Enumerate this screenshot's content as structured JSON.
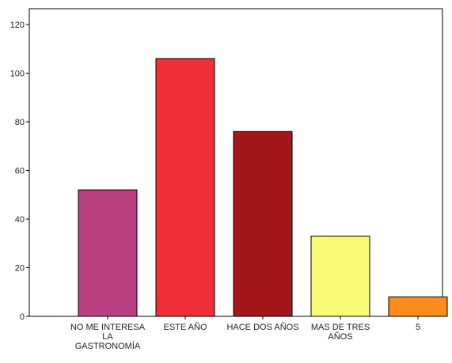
{
  "chart_data": {
    "type": "bar",
    "title": "",
    "xlabel": "",
    "ylabel": "",
    "ylim": [
      0,
      120
    ],
    "yticks": [
      0,
      20,
      40,
      60,
      80,
      100,
      120
    ],
    "yticks_labels": [
      "0",
      "20",
      "40",
      "60",
      "80",
      "100",
      "120"
    ],
    "categories": [
      [
        "NO ME INTERESA",
        "LA",
        "GASTRONOMÍA"
      ],
      [
        "ESTE AÑO"
      ],
      [
        "HACE DOS AÑOS"
      ],
      [
        "MAS DE TRES",
        "AÑOS"
      ],
      [
        "5"
      ]
    ],
    "values": [
      52,
      106,
      76,
      33,
      8
    ],
    "colors": [
      "#bb4081",
      "#f03039",
      "#a3161a",
      "#fafa78",
      "#fa8c1e"
    ],
    "bar_outline_color": "#000000",
    "grid": false,
    "legend": "none"
  }
}
